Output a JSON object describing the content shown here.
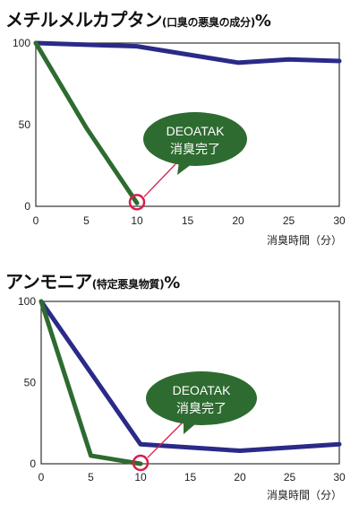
{
  "chart_data": [
    {
      "type": "line",
      "title": "メチルメルカプタン",
      "subtitle": "(口臭の悪臭の成分)",
      "unit": "%",
      "xlabel": "消臭時間（分）",
      "ylabel": "",
      "xlim": [
        0,
        30
      ],
      "ylim": [
        0,
        100
      ],
      "x_ticks": [
        "0",
        "5",
        "10",
        "15",
        "20",
        "25",
        "30"
      ],
      "y_ticks": [
        "0",
        "50",
        "100"
      ],
      "series": [
        {
          "color": "#2a2a88",
          "x": [
            0,
            10,
            20,
            25,
            30
          ],
          "y": [
            100,
            98,
            88,
            90,
            89
          ]
        },
        {
          "color": "#2e6b30",
          "x": [
            0,
            5,
            10
          ],
          "y": [
            100,
            48,
            2
          ]
        }
      ],
      "annotation": {
        "line1": "DEOATAK",
        "line2": "消臭完了",
        "x": 10,
        "y": 2,
        "bubble_color": "#2e6b30",
        "marker_color": "#d81e4a"
      }
    },
    {
      "type": "line",
      "title": "アンモニア",
      "subtitle": "(特定悪臭物質)",
      "unit": "%",
      "xlabel": "消臭時間（分）",
      "ylabel": "",
      "xlim": [
        0,
        30
      ],
      "ylim": [
        0,
        100
      ],
      "x_ticks": [
        "0",
        "5",
        "10",
        "15",
        "20",
        "25",
        "30"
      ],
      "y_ticks": [
        "0",
        "50",
        "100"
      ],
      "series": [
        {
          "color": "#2a2a88",
          "x": [
            0,
            10,
            20,
            30
          ],
          "y": [
            100,
            12,
            8,
            12
          ]
        },
        {
          "color": "#2e6b30",
          "x": [
            0,
            5,
            10
          ],
          "y": [
            100,
            5,
            0
          ]
        }
      ],
      "annotation": {
        "line1": "DEOATAK",
        "line2": "消臭完了",
        "x": 10,
        "y": 0,
        "bubble_color": "#2e6b30",
        "marker_color": "#d81e4a"
      }
    }
  ]
}
